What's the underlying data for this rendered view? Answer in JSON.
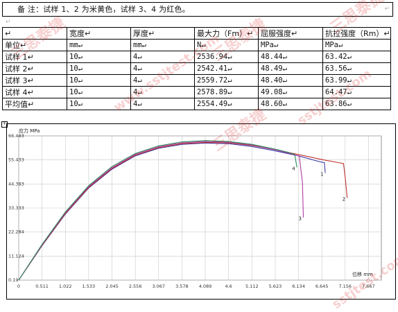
{
  "note": {
    "text": "备  注：试样 1、2 为米黄色，试样 3、4 为红色。",
    "mark": "↵"
  },
  "gap_mark": "↵",
  "table": {
    "header": [
      "↵",
      "宽度↵",
      "厚度↵",
      "最大力（Fm）↵",
      "屈服强度↵",
      "抗拉强度（Rm）↵"
    ],
    "rows": [
      [
        "单位↵",
        "mm↵",
        "mm↵",
        "N↵",
        "MPa↵",
        "MPa↵"
      ],
      [
        "试样 1↵",
        "10↵",
        "4↵",
        "2536.94↵",
        "48.44↵",
        "63.42↵"
      ],
      [
        "试样 2↵",
        "10↵",
        "4↵",
        "2542.41↵",
        "48.49↵",
        "63.56↵"
      ],
      [
        "试样 3↵",
        "10↵",
        "4↵",
        "2559.72↵",
        "48.40↵",
        "63.99↵"
      ],
      [
        "试样 4↵",
        "10↵",
        "4↵",
        "2578.89↵",
        "49.08↵",
        "64.47↵"
      ],
      [
        "平均值↵",
        "10↵",
        "4↵",
        "2554.49↵",
        "48.60↵",
        "63.86↵"
      ]
    ]
  },
  "watermarks": [
    "三思泰捷",
    "www.sstjtest.com",
    "三思泰捷",
    "三思泰捷",
    "sstjtest.com",
    "三思泰捷",
    "sstjtest.com"
  ],
  "chart_data": {
    "type": "line",
    "ylabel": "应力 MPa",
    "xlabel": "位移 mm",
    "x_ticks": [
      "0",
      "0.511",
      "1.022",
      "1.533",
      "2.045",
      "2.556",
      "3.067",
      "3.578",
      "4.089",
      "4.6",
      "5.112",
      "5.623",
      "6.134",
      "6.645",
      "7.156",
      "7.667"
    ],
    "y_ticks": [
      "0.19",
      "11.124",
      "22.284",
      "33.333",
      "44.383",
      "55.433",
      "66.483"
    ],
    "xlim": [
      0,
      7.95
    ],
    "ylim": [
      0.19,
      66.483
    ],
    "grid": true,
    "series": [
      {
        "name": "1",
        "color": "#3a3aa8",
        "x": [
          0,
          0.511,
          1.022,
          1.533,
          2.045,
          2.556,
          3.067,
          3.578,
          4.089,
          4.6,
          5.112,
          5.623,
          6.134,
          6.39,
          6.62,
          6.7,
          6.72
        ],
        "y": [
          0.19,
          16,
          30.5,
          42.5,
          51.2,
          57.3,
          60.8,
          62.6,
          63.2,
          62.9,
          61.6,
          59.6,
          57.3,
          55.8,
          54.5,
          54.2,
          49.5
        ]
      },
      {
        "name": "2",
        "color": "#c03030",
        "x": [
          0,
          0.511,
          1.022,
          1.533,
          2.045,
          2.556,
          3.067,
          3.578,
          4.089,
          4.6,
          5.112,
          5.623,
          6.134,
          6.645,
          7.0,
          7.12,
          7.16,
          7.2
        ],
        "y": [
          0.19,
          16.2,
          30.8,
          42.8,
          51.5,
          57.6,
          61.1,
          62.9,
          63.5,
          63.3,
          62.1,
          60.1,
          57.9,
          55.6,
          54.2,
          53.8,
          47,
          38
        ]
      },
      {
        "name": "3",
        "color": "#b03aa0",
        "x": [
          0,
          0.511,
          1.022,
          1.533,
          2.045,
          2.556,
          3.067,
          3.578,
          4.089,
          4.6,
          5.112,
          5.623,
          5.95,
          6.15,
          6.22,
          6.24
        ],
        "y": [
          0.19,
          16.4,
          31.2,
          43.2,
          51.9,
          58,
          61.5,
          63.3,
          63.9,
          63.6,
          62.3,
          60.1,
          58.4,
          57.2,
          45,
          29
        ]
      },
      {
        "name": "4",
        "color": "#2a8a5a",
        "x": [
          0,
          0.511,
          1.022,
          1.533,
          2.045,
          2.556,
          3.067,
          3.578,
          4.089,
          4.6,
          5.112,
          5.623,
          5.9,
          6.05,
          6.1
        ],
        "y": [
          0.19,
          16.6,
          31.5,
          43.6,
          52.4,
          58.4,
          61.9,
          63.7,
          64.3,
          63.9,
          62.6,
          60.4,
          59,
          57.9,
          52
        ]
      }
    ]
  }
}
